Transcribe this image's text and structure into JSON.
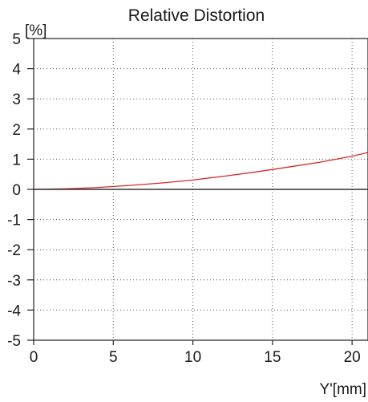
{
  "chart_data": {
    "type": "line",
    "title": "Relative Distortion",
    "ylabel": "[%]",
    "xlabel": "Y'[mm]",
    "xlim": [
      0,
      21
    ],
    "ylim": [
      -5,
      5
    ],
    "x_ticks": [
      0,
      5,
      10,
      15,
      20
    ],
    "y_ticks": [
      5,
      4,
      3,
      2,
      1,
      0,
      -1,
      -2,
      -3,
      -4,
      -5
    ],
    "x_tick_labels": [
      "0",
      "5",
      "10",
      "15",
      "20"
    ],
    "y_tick_labels": [
      "5",
      "4",
      "3",
      "2",
      "1",
      "0",
      "-1",
      "-2",
      "-3",
      "-4",
      "-5"
    ],
    "grid": true,
    "series": [
      {
        "color": "#d62b2b",
        "x": [
          0,
          2,
          4,
          6,
          8,
          10,
          12,
          14,
          16,
          18,
          20,
          21
        ],
        "y": [
          0,
          0.02,
          0.06,
          0.13,
          0.21,
          0.31,
          0.44,
          0.58,
          0.74,
          0.9,
          1.1,
          1.22
        ]
      },
      {
        "color": "#333333",
        "x": [
          0,
          21
        ],
        "y": [
          0,
          0
        ]
      }
    ]
  }
}
